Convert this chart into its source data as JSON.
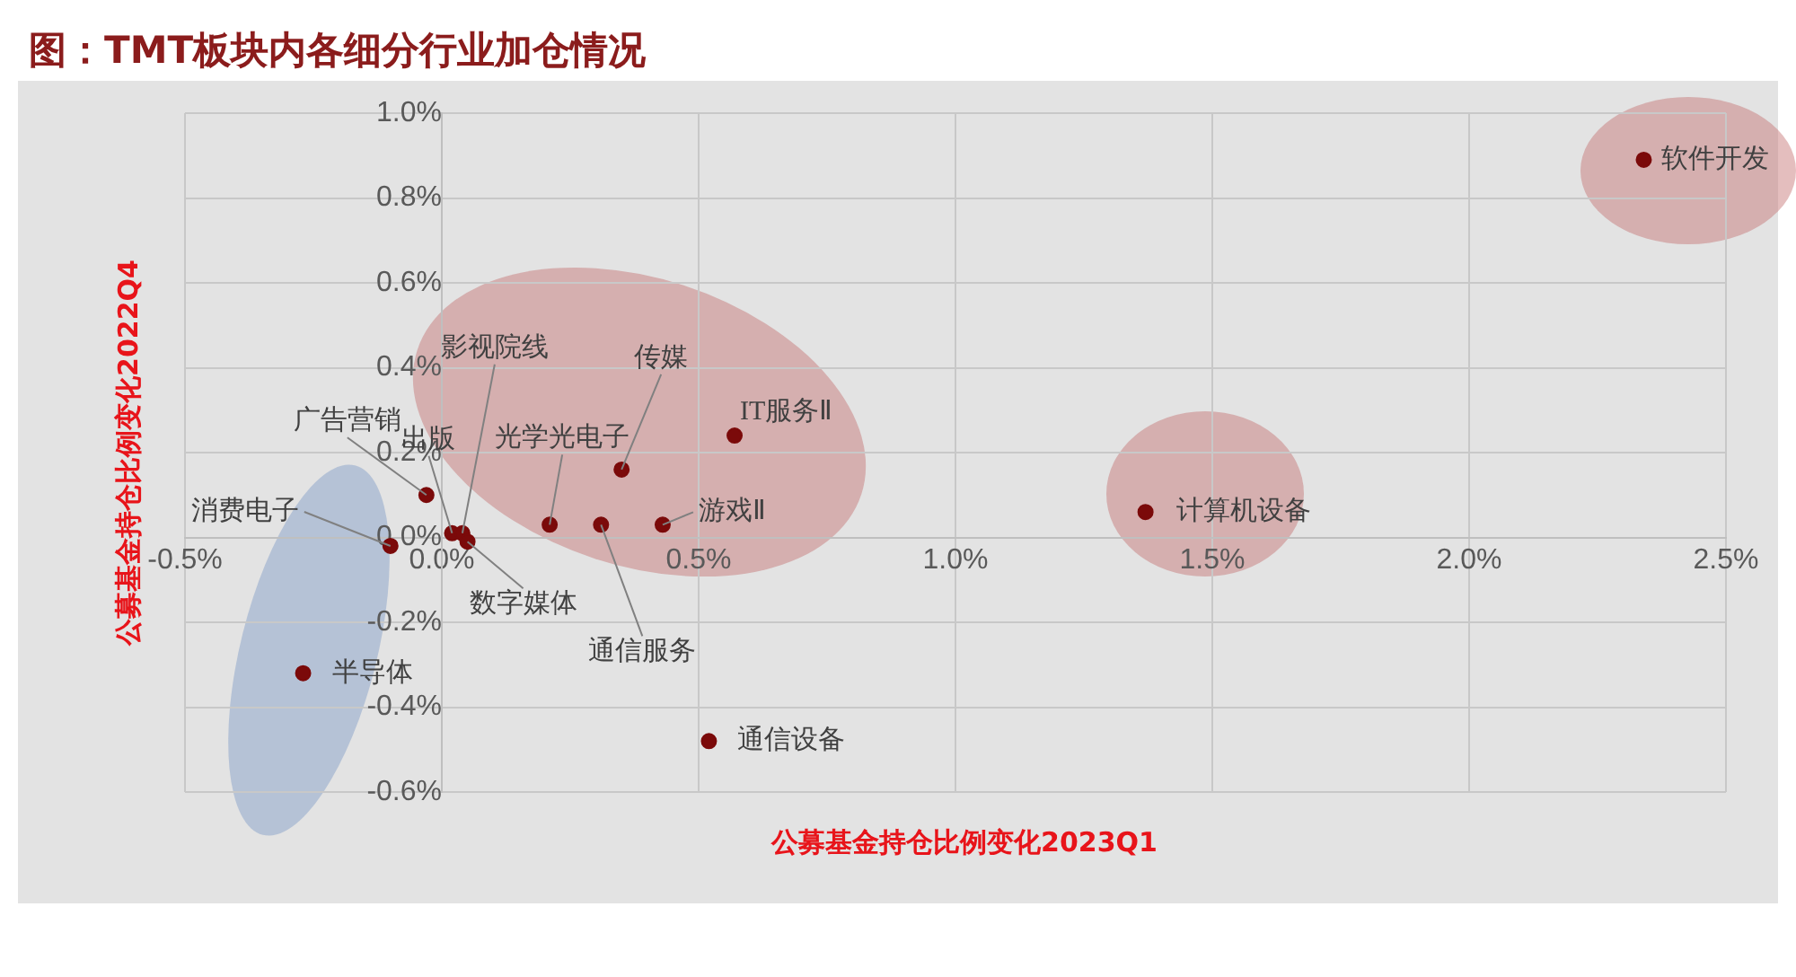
{
  "chart_data": {
    "type": "scatter",
    "title": "图：TMT板块内各细分行业加仓情况",
    "xlabel": "公募基金持仓比例变化2023Q1",
    "ylabel": "公募基金持仓比例变化2022Q4",
    "x": [
      2.34,
      0.57,
      0.35,
      0.43,
      0.31,
      0.21,
      0.02,
      0.04,
      0.05,
      -0.03,
      -0.1,
      1.37,
      -0.27,
      0.52
    ],
    "values": [
      0.89,
      0.24,
      0.16,
      0.03,
      0.03,
      0.03,
      0.01,
      0.01,
      -0.01,
      0.1,
      -0.02,
      0.06,
      -0.32,
      -0.48
    ],
    "color": "#7b0a0a",
    "marker": "circle",
    "grid": true,
    "xlim": [
      -0.5,
      2.5
    ],
    "ylim": [
      -0.6,
      1.0
    ],
    "xticks": [
      {
        "value": -0.5,
        "label": "-0.5%"
      },
      {
        "value": 0,
        "label": "0.0%"
      },
      {
        "value": 0.5,
        "label": "0.5%"
      },
      {
        "value": 1,
        "label": "1.0%"
      },
      {
        "value": 1.5,
        "label": "1.5%"
      },
      {
        "value": 2,
        "label": "2.0%"
      },
      {
        "value": 2.5,
        "label": "2.5%"
      }
    ],
    "yticks": [
      {
        "value": -0.6,
        "label": "-0.6%"
      },
      {
        "value": -0.4,
        "label": "-0.4%"
      },
      {
        "value": -0.2,
        "label": "-0.2%"
      },
      {
        "value": 0,
        "label": "0.0%"
      },
      {
        "value": 0.2,
        "label": "0.2%"
      },
      {
        "value": 0.4,
        "label": "0.4%"
      },
      {
        "value": 0.6,
        "label": "0.6%"
      },
      {
        "value": 0.8,
        "label": "0.8%"
      },
      {
        "value": 1,
        "label": "1.0%"
      }
    ],
    "annotations": [
      {
        "text": "软件开发",
        "x": 2.34,
        "y": 0.89
      },
      {
        "text": "IT服务Ⅱ",
        "x": 0.57,
        "y": 0.24
      },
      {
        "text": "传媒",
        "x": 0.35,
        "y": 0.16
      },
      {
        "text": "游戏Ⅱ",
        "x": 0.43,
        "y": 0.03
      },
      {
        "text": "通信服务",
        "x": 0.31,
        "y": 0.03
      },
      {
        "text": "光学光电子",
        "x": 0.21,
        "y": 0.03
      },
      {
        "text": "出版",
        "x": 0.02,
        "y": 0.01
      },
      {
        "text": "影视院线",
        "x": 0.04,
        "y": 0.01
      },
      {
        "text": "数字媒体",
        "x": 0.05,
        "y": -0.01
      },
      {
        "text": "广告营销",
        "x": -0.03,
        "y": 0.1
      },
      {
        "text": "消费电子",
        "x": -0.1,
        "y": -0.02
      },
      {
        "text": "计算机设备",
        "x": 1.37,
        "y": 0.06
      },
      {
        "text": "半导体",
        "x": -0.27,
        "y": -0.32
      },
      {
        "text": "通信设备",
        "x": 0.52,
        "y": -0.48
      }
    ]
  }
}
